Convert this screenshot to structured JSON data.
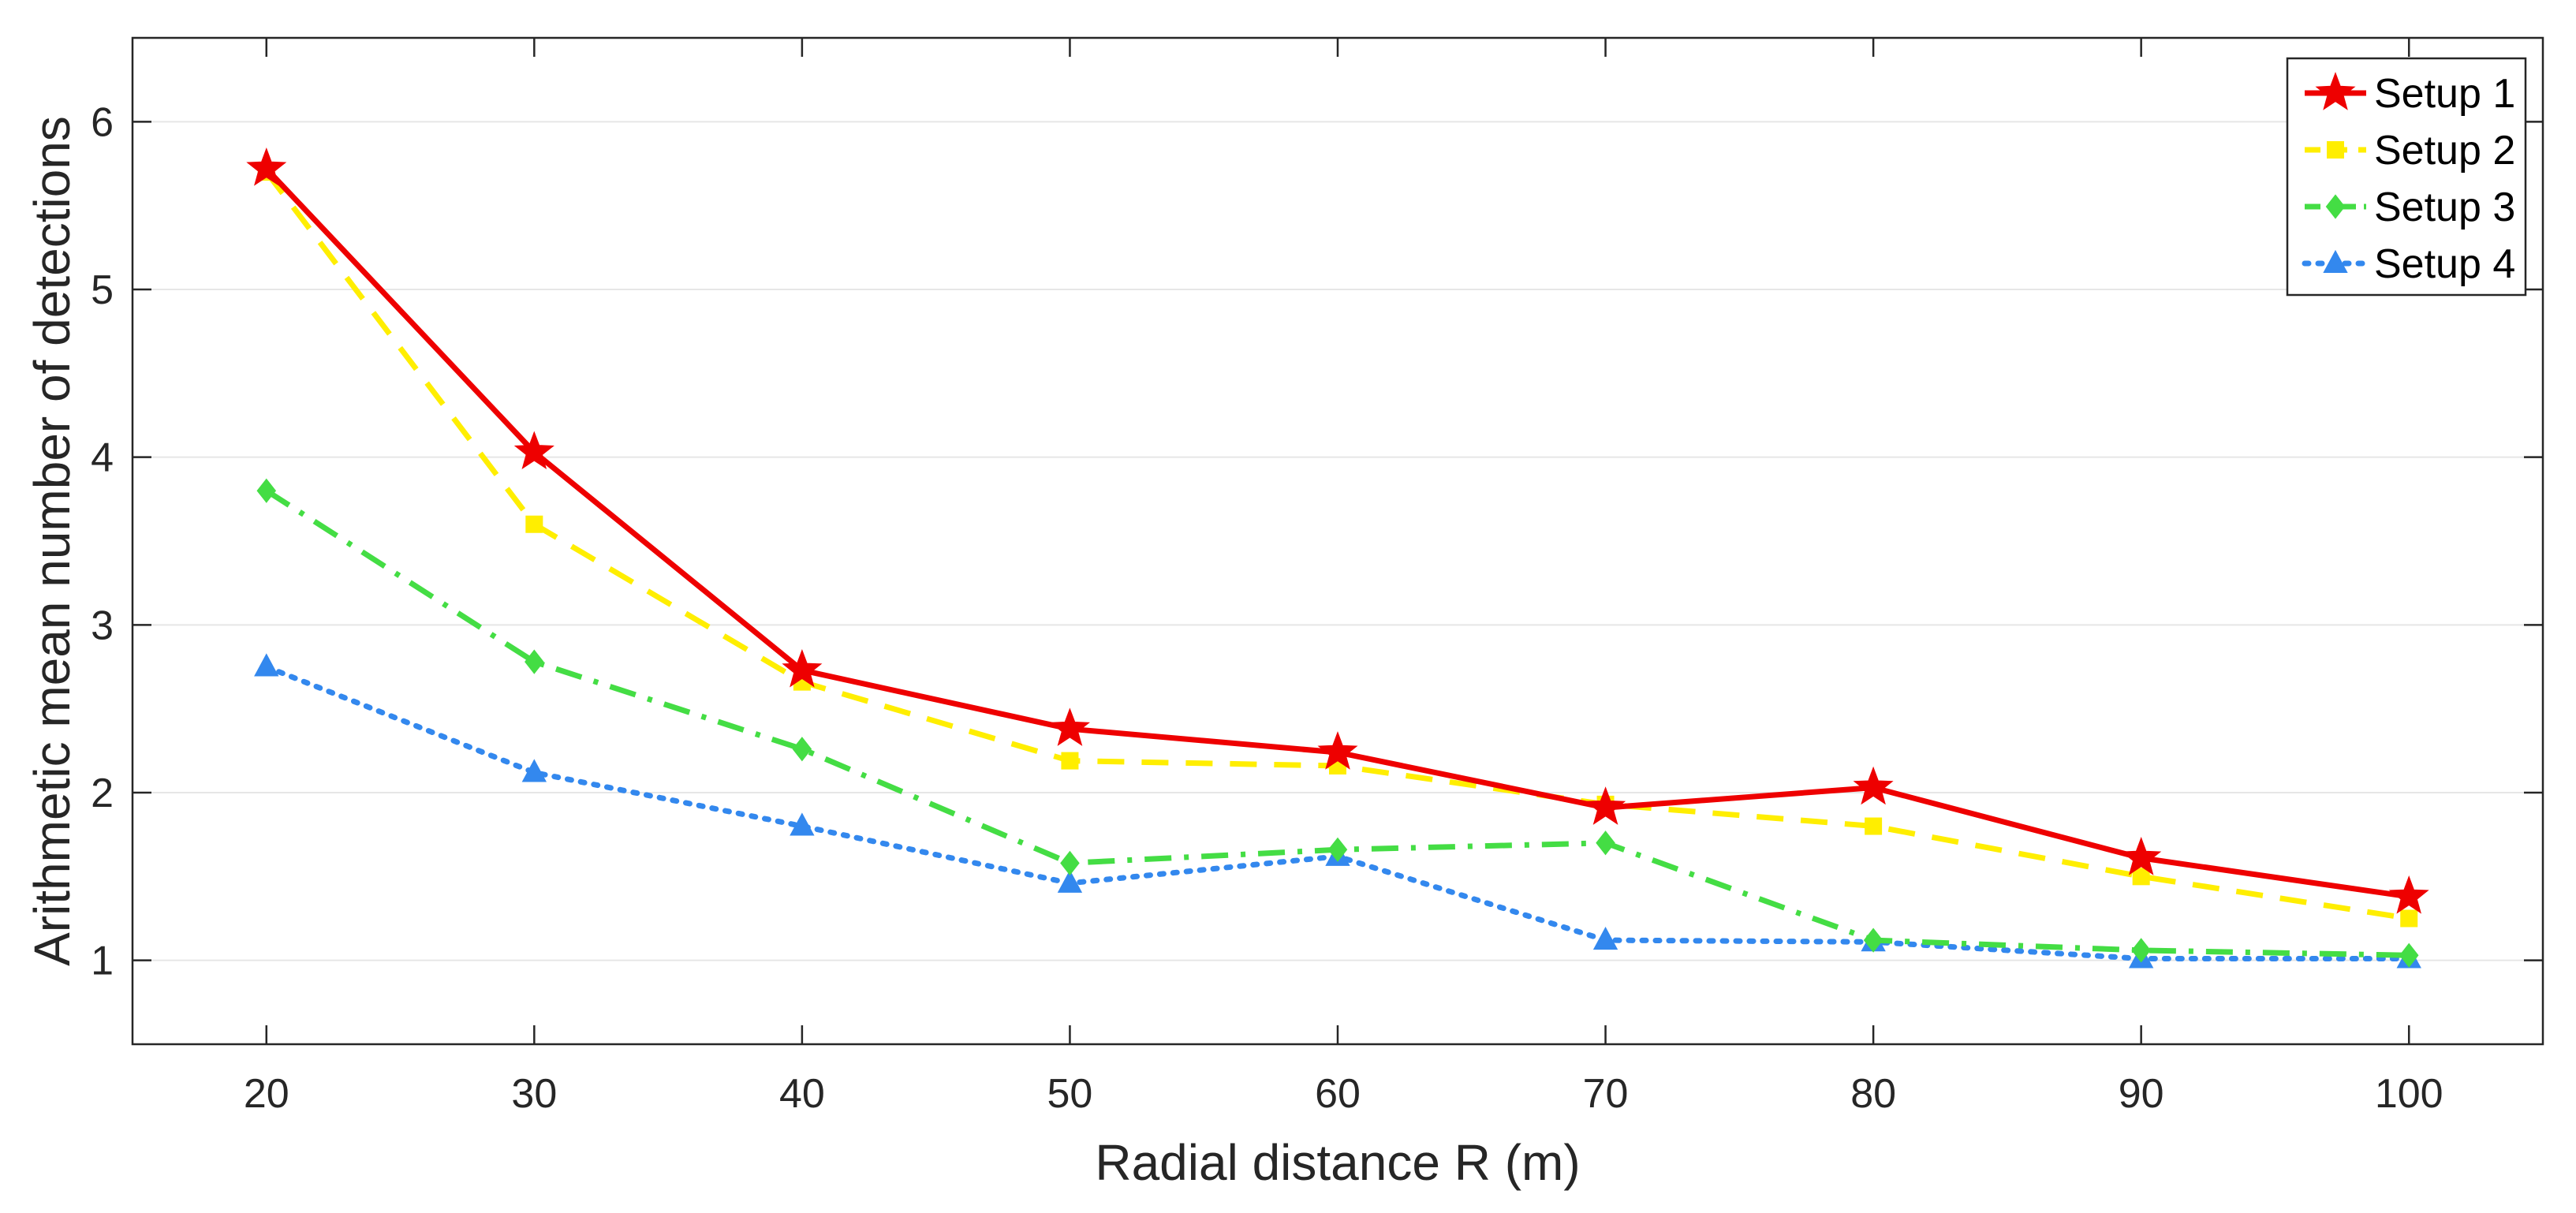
{
  "chart_data": {
    "type": "line",
    "title": "",
    "xlabel": "Radial distance R (m)",
    "ylabel": "Arithmetic mean number of detections",
    "x": [
      20,
      30,
      40,
      50,
      60,
      70,
      80,
      90,
      100
    ],
    "xlim": [
      15,
      105
    ],
    "ylim": [
      0.5,
      6.5
    ],
    "xticks": [
      "20",
      "30",
      "40",
      "50",
      "60",
      "70",
      "80",
      "90",
      "100"
    ],
    "yticks": [
      "1",
      "2",
      "3",
      "4",
      "5",
      "6"
    ],
    "grid": "horizontal",
    "legend_position": "top-right",
    "series": [
      {
        "name": "Setup 1",
        "color": "#ee0000",
        "line": "solid",
        "marker": "star",
        "values": [
          5.72,
          4.03,
          2.73,
          2.38,
          2.24,
          1.91,
          2.03,
          1.61,
          1.38
        ]
      },
      {
        "name": "Setup 2",
        "color": "#ffee00",
        "line": "dashed",
        "marker": "square",
        "values": [
          5.7,
          3.6,
          2.66,
          2.19,
          2.16,
          1.93,
          1.8,
          1.5,
          1.25
        ]
      },
      {
        "name": "Setup 3",
        "color": "#44dd44",
        "line": "dashdot",
        "marker": "diamond",
        "values": [
          3.8,
          2.78,
          2.26,
          1.58,
          1.66,
          1.7,
          1.12,
          1.06,
          1.03
        ]
      },
      {
        "name": "Setup 4",
        "color": "#3388ee",
        "line": "dotted",
        "marker": "triangle",
        "values": [
          2.75,
          2.12,
          1.8,
          1.46,
          1.62,
          1.12,
          1.11,
          1.01,
          1.01
        ]
      }
    ]
  }
}
